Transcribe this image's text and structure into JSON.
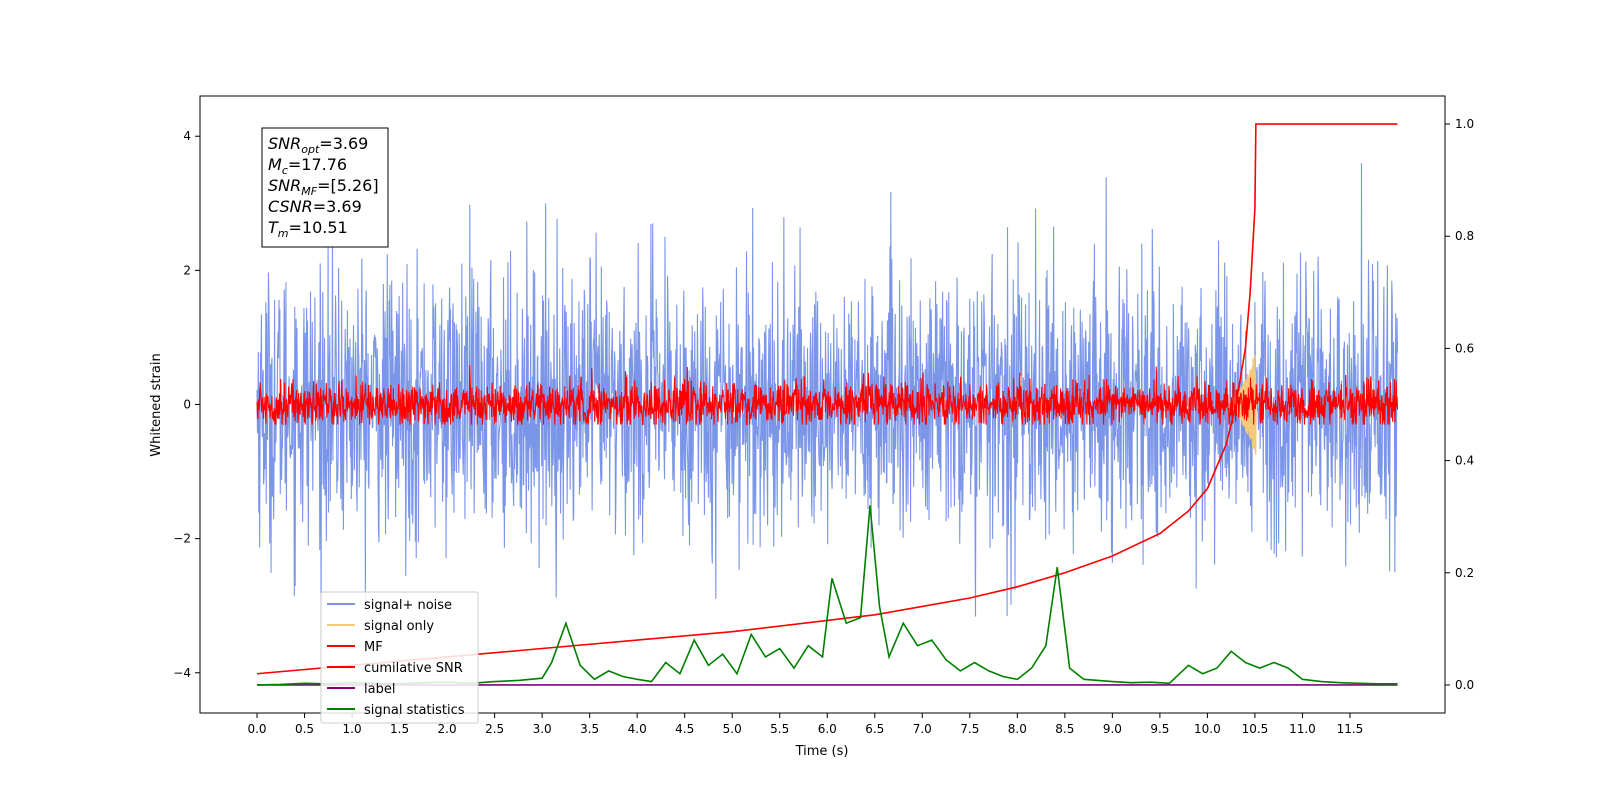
{
  "chart_data": {
    "type": "line",
    "title": "",
    "xlabel": "Time (s)",
    "ylabel": "Whitened strain",
    "y2label": "",
    "xlim": [
      -0.6,
      12.5
    ],
    "ylim": [
      -4.6,
      4.6
    ],
    "y2lim": [
      -0.05,
      1.05
    ],
    "x_ticks": [
      0.0,
      0.5,
      1.0,
      1.5,
      2.0,
      2.5,
      3.0,
      3.5,
      4.0,
      4.5,
      5.0,
      5.5,
      6.0,
      6.5,
      7.0,
      7.5,
      8.0,
      8.5,
      9.0,
      9.5,
      10.0,
      10.5,
      11.0,
      11.5
    ],
    "x_tick_labels": [
      "0.0",
      "0.5",
      "1.0",
      "1.5",
      "2.0",
      "2.5",
      "3.0",
      "3.5",
      "4.0",
      "4.5",
      "5.0",
      "5.5",
      "6.0",
      "6.5",
      "7.0",
      "7.5",
      "8.0",
      "8.5",
      "9.0",
      "9.5",
      "10.0",
      "10.5",
      "11.0",
      "11.5"
    ],
    "y_ticks": [
      -4,
      -2,
      0,
      2,
      4
    ],
    "y_tick_labels": [
      "−4",
      "−2",
      "0",
      "2",
      "4"
    ],
    "y2_ticks": [
      0.0,
      0.2,
      0.4,
      0.6,
      0.8,
      1.0
    ],
    "y2_tick_labels": [
      "0.0",
      "0.2",
      "0.4",
      "0.6",
      "0.8",
      "1.0"
    ],
    "grid": false,
    "legend_position": "lower-left",
    "annotation": {
      "lines": [
        {
          "sym": "SNR",
          "sub": "opt",
          "val": "=3.69"
        },
        {
          "sym": "M",
          "sub": "c",
          "val": "=17.76"
        },
        {
          "sym": "SNR",
          "sub": "MF",
          "val": "=[5.26]"
        },
        {
          "sym": "CSNR",
          "sub": "",
          "val": "=3.69"
        },
        {
          "sym": "T",
          "sub": "m",
          "val": "=10.51"
        }
      ]
    },
    "series": [
      {
        "name": "signal+ noise",
        "color": "#7b96e8",
        "axis": "left",
        "style": "noise",
        "x_range": [
          0.0,
          12.0
        ],
        "amplitude_sigma": 1.0,
        "envelope_max": 4.2,
        "envelope_min": -4.0
      },
      {
        "name": "signal only",
        "color": "#f5c97a",
        "axis": "left",
        "style": "chirp",
        "x_range": [
          10.2,
          10.51
        ],
        "peak": 0.8
      },
      {
        "name": "MF",
        "color": "#ff0000",
        "axis": "left",
        "style": "noise",
        "x_range": [
          0.0,
          12.0
        ],
        "amplitude_sigma": 0.17,
        "envelope_max": 1.0,
        "envelope_min": -0.3
      },
      {
        "name": "cumilative SNR",
        "color": "#ff0000",
        "axis": "right",
        "x": [
          0.0,
          1.0,
          2.0,
          3.0,
          4.0,
          5.0,
          6.0,
          6.5,
          7.0,
          7.5,
          8.0,
          8.5,
          9.0,
          9.5,
          9.8,
          10.0,
          10.2,
          10.3,
          10.4,
          10.45,
          10.5,
          10.51,
          12.0
        ],
        "y": [
          0.02,
          0.035,
          0.05,
          0.065,
          0.08,
          0.095,
          0.115,
          0.125,
          0.14,
          0.155,
          0.175,
          0.2,
          0.23,
          0.27,
          0.31,
          0.35,
          0.43,
          0.5,
          0.6,
          0.7,
          0.85,
          1.0,
          1.0
        ]
      },
      {
        "name": "label",
        "color": "#800080",
        "axis": "right",
        "x": [
          0.0,
          12.0
        ],
        "y": [
          0.0,
          0.0
        ]
      },
      {
        "name": "signal statistics",
        "color": "#008000",
        "axis": "right",
        "x": [
          0.0,
          0.25,
          0.5,
          0.75,
          1.0,
          1.25,
          1.5,
          1.75,
          2.0,
          2.25,
          2.5,
          2.75,
          3.0,
          3.1,
          3.25,
          3.4,
          3.55,
          3.7,
          3.85,
          4.0,
          4.15,
          4.3,
          4.45,
          4.6,
          4.75,
          4.9,
          5.05,
          5.2,
          5.35,
          5.5,
          5.65,
          5.8,
          5.95,
          6.05,
          6.2,
          6.35,
          6.45,
          6.55,
          6.65,
          6.8,
          6.95,
          7.1,
          7.25,
          7.4,
          7.55,
          7.7,
          7.85,
          8.0,
          8.15,
          8.3,
          8.42,
          8.55,
          8.7,
          8.85,
          9.0,
          9.2,
          9.4,
          9.6,
          9.8,
          9.95,
          10.1,
          10.25,
          10.4,
          10.55,
          10.7,
          10.85,
          11.0,
          11.2,
          11.4,
          11.6,
          11.8,
          12.0
        ],
        "y": [
          0.0,
          0.001,
          0.003,
          0.002,
          0.004,
          0.003,
          0.002,
          0.004,
          0.005,
          0.003,
          0.006,
          0.008,
          0.012,
          0.04,
          0.11,
          0.035,
          0.01,
          0.025,
          0.015,
          0.01,
          0.006,
          0.04,
          0.02,
          0.08,
          0.035,
          0.055,
          0.02,
          0.09,
          0.05,
          0.065,
          0.03,
          0.07,
          0.05,
          0.19,
          0.11,
          0.12,
          0.32,
          0.14,
          0.05,
          0.11,
          0.07,
          0.08,
          0.045,
          0.025,
          0.04,
          0.025,
          0.015,
          0.01,
          0.03,
          0.07,
          0.21,
          0.03,
          0.01,
          0.008,
          0.006,
          0.004,
          0.005,
          0.003,
          0.035,
          0.02,
          0.03,
          0.06,
          0.04,
          0.03,
          0.04,
          0.03,
          0.01,
          0.006,
          0.004,
          0.003,
          0.002,
          0.002
        ]
      }
    ]
  }
}
